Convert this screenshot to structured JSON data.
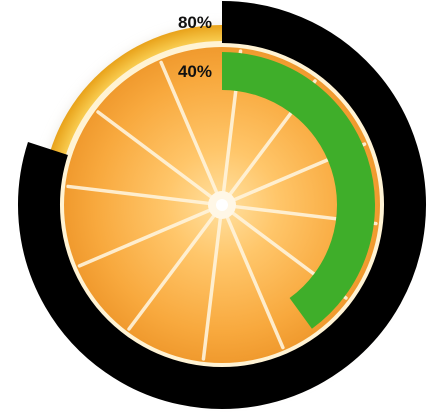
{
  "chart_data": {
    "type": "radial-bar",
    "series": [
      {
        "value": 80,
        "label": "80%",
        "color": "#000000"
      },
      {
        "value": 40,
        "label": "40%",
        "color": "#3fae2a"
      }
    ],
    "max": 100,
    "start_angle": "top",
    "direction": "clockwise",
    "background_image": "orange-slice"
  }
}
